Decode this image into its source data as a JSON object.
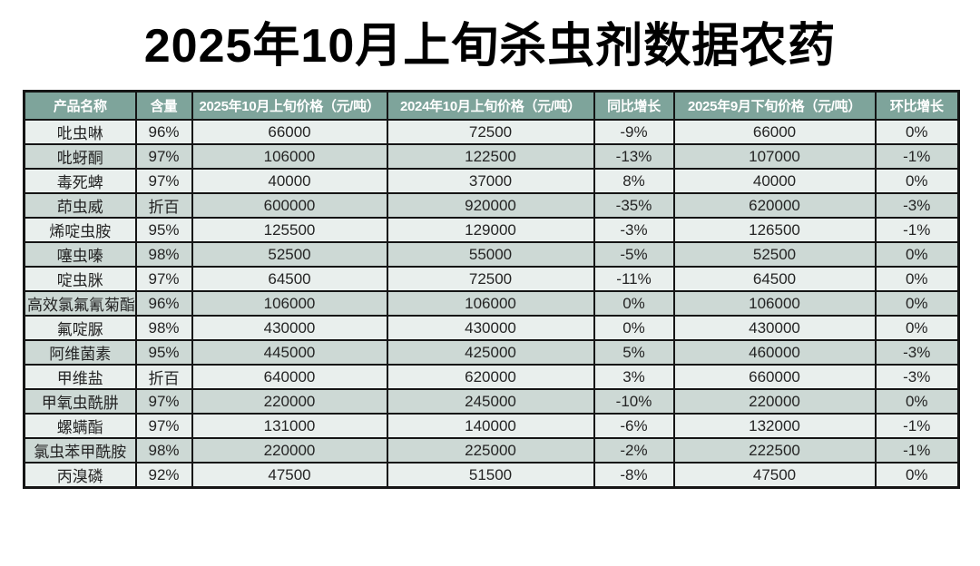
{
  "title": "2025年10月上旬杀虫剂数据农药",
  "table": {
    "headers": [
      "产品名称",
      "含量",
      "2025年10月上旬价格（元/吨）",
      "2024年10月上旬价格（元/吨）",
      "同比增长",
      "2025年9月下旬价格（元/吨）",
      "环比增长"
    ],
    "rows": [
      [
        "吡虫啉",
        "96%",
        "66000",
        "72500",
        "-9%",
        "66000",
        "0%"
      ],
      [
        "吡蚜酮",
        "97%",
        "106000",
        "122500",
        "-13%",
        "107000",
        "-1%"
      ],
      [
        "毒死蜱",
        "97%",
        "40000",
        "37000",
        "8%",
        "40000",
        "0%"
      ],
      [
        "茚虫威",
        "折百",
        "600000",
        "920000",
        "-35%",
        "620000",
        "-3%"
      ],
      [
        "烯啶虫胺",
        "95%",
        "125500",
        "129000",
        "-3%",
        "126500",
        "-1%"
      ],
      [
        "噻虫嗪",
        "98%",
        "52500",
        "55000",
        "-5%",
        "52500",
        "0%"
      ],
      [
        "啶虫脒",
        "97%",
        "64500",
        "72500",
        "-11%",
        "64500",
        "0%"
      ],
      [
        "高效氯氟氰菊酯",
        "96%",
        "106000",
        "106000",
        "0%",
        "106000",
        "0%"
      ],
      [
        "氟啶脲",
        "98%",
        "430000",
        "430000",
        "0%",
        "430000",
        "0%"
      ],
      [
        "阿维菌素",
        "95%",
        "445000",
        "425000",
        "5%",
        "460000",
        "-3%"
      ],
      [
        "甲维盐",
        "折百",
        "640000",
        "620000",
        "3%",
        "660000",
        "-3%"
      ],
      [
        "甲氧虫酰肼",
        "97%",
        "220000",
        "245000",
        "-10%",
        "220000",
        "0%"
      ],
      [
        "螺螨酯",
        "97%",
        "131000",
        "140000",
        "-6%",
        "132000",
        "-1%"
      ],
      [
        "氯虫苯甲酰胺",
        "98%",
        "220000",
        "225000",
        "-2%",
        "222500",
        "-1%"
      ],
      [
        "丙溴磷",
        "92%",
        "47500",
        "51500",
        "-8%",
        "47500",
        "0%"
      ]
    ]
  },
  "colors": {
    "header_bg": "#7ea49b",
    "row_light": "#e9efed",
    "row_dark": "#cdd9d5",
    "border": "#151515",
    "title_text": "#000000",
    "header_text": "#ffffff"
  }
}
